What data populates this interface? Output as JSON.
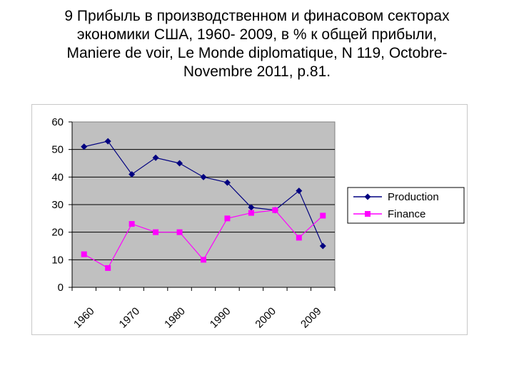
{
  "title_lines": [
    "9 Прибыль в производственном и финасовом секторах",
    "экономики США, 1960- 2009, в % к общей прибыли,",
    "Maniere de voir, Le Monde diplomatique, N 119, Octobre-",
    "Novembre 2011, p.81."
  ],
  "chart_data": {
    "type": "line",
    "title": "9 Прибыль в производственном и финасовом секторах экономики США, 1960- 2009, в % к общей прибыли, Maniere de voir, Le Monde diplomatique, N 119, Octobre-Novembre 2011, p.81.",
    "xlabel": "",
    "ylabel": "",
    "ylim": [
      0,
      60
    ],
    "yticks": [
      0,
      10,
      20,
      30,
      40,
      50,
      60
    ],
    "xticks": [
      "1960",
      "1970",
      "1980",
      "1990",
      "2000",
      "2009"
    ],
    "grid": true,
    "legend_position": "right",
    "plot_background": "#c0c0c0",
    "series": [
      {
        "name": "Production",
        "color": "#000080",
        "marker": "diamond",
        "values": [
          51,
          53,
          41,
          47,
          45,
          40,
          38,
          29,
          28,
          35,
          15
        ]
      },
      {
        "name": "Finance",
        "color": "#ff00ff",
        "marker": "square",
        "values": [
          12,
          7,
          23,
          20,
          20,
          10,
          25,
          27,
          28,
          18,
          26
        ]
      }
    ]
  }
}
